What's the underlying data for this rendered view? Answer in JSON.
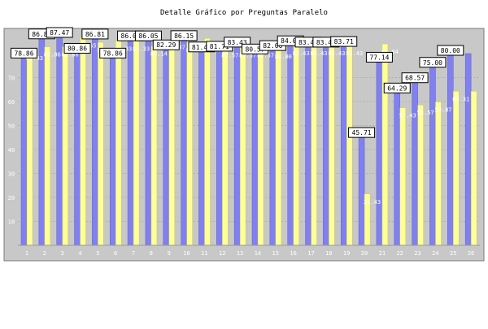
{
  "chart_data": {
    "type": "bar",
    "title": "Detalle Gráfico por Preguntas Paralelo",
    "xlabel": "",
    "ylabel": "",
    "ylim": [
      0,
      100
    ],
    "y_ticks": [
      10,
      20,
      30,
      40,
      50,
      60,
      70
    ],
    "grid": true,
    "legend": "none",
    "categories": [
      "1",
      "2",
      "3",
      "4",
      "5",
      "6",
      "7",
      "8",
      "9",
      "10",
      "11",
      "12",
      "13",
      "14",
      "15",
      "16",
      "17",
      "18",
      "19",
      "20",
      "21",
      "22",
      "23",
      "24",
      "25",
      "26"
    ],
    "series": [
      {
        "color": "#8080f0",
        "values": [
          78.86,
          86.86,
          87.47,
          80.86,
          86.81,
          78.86,
          86.05,
          86.05,
          82.29,
          86.15,
          81.43,
          81.71,
          83.43,
          80.57,
          82.0,
          84.0,
          83.43,
          83.43,
          83.71,
          45.71,
          77.14,
          64.29,
          68.57,
          75.0,
          80.0,
          80.0
        ],
        "data_labels": [
          "78.86",
          "86.86",
          "87.47",
          "80.86",
          "86.81",
          "78.86",
          "86.05",
          "86.05",
          "82.29",
          "86.15",
          "81.43",
          "81.71",
          "83.43",
          "80.57",
          "82.00",
          "84.00",
          "83.43",
          "83.43",
          "83.71",
          "45.71",
          "77.14",
          "64.29",
          "68.57",
          "75.00",
          "80.00",
          ""
        ]
      },
      {
        "color": "#ffff99",
        "values": [
          81.43,
          82.86,
          82.86,
          86.65,
          84.71,
          85.33,
          85.33,
          83.14,
          85.87,
          84.71,
          86.37,
          82.57,
          82.57,
          82.57,
          82.0,
          83.43,
          83.43,
          83.43,
          83.43,
          21.43,
          84.04,
          57.43,
          58.57,
          59.87,
          64.31,
          64.31
        ],
        "data_labels": [
          "81.43",
          "82.86",
          "82.86",
          "86.65",
          "84.71",
          "85.33",
          "85.33",
          "83.14",
          "85.87",
          "84.71",
          "86.37",
          "82.57",
          "82.57",
          "82.57",
          "82.00",
          "83.43",
          "83.43",
          "83.43",
          "83.43",
          "21.43",
          "84.04",
          "57.43",
          "58.57",
          "59.87",
          "64.31",
          ""
        ]
      }
    ]
  }
}
